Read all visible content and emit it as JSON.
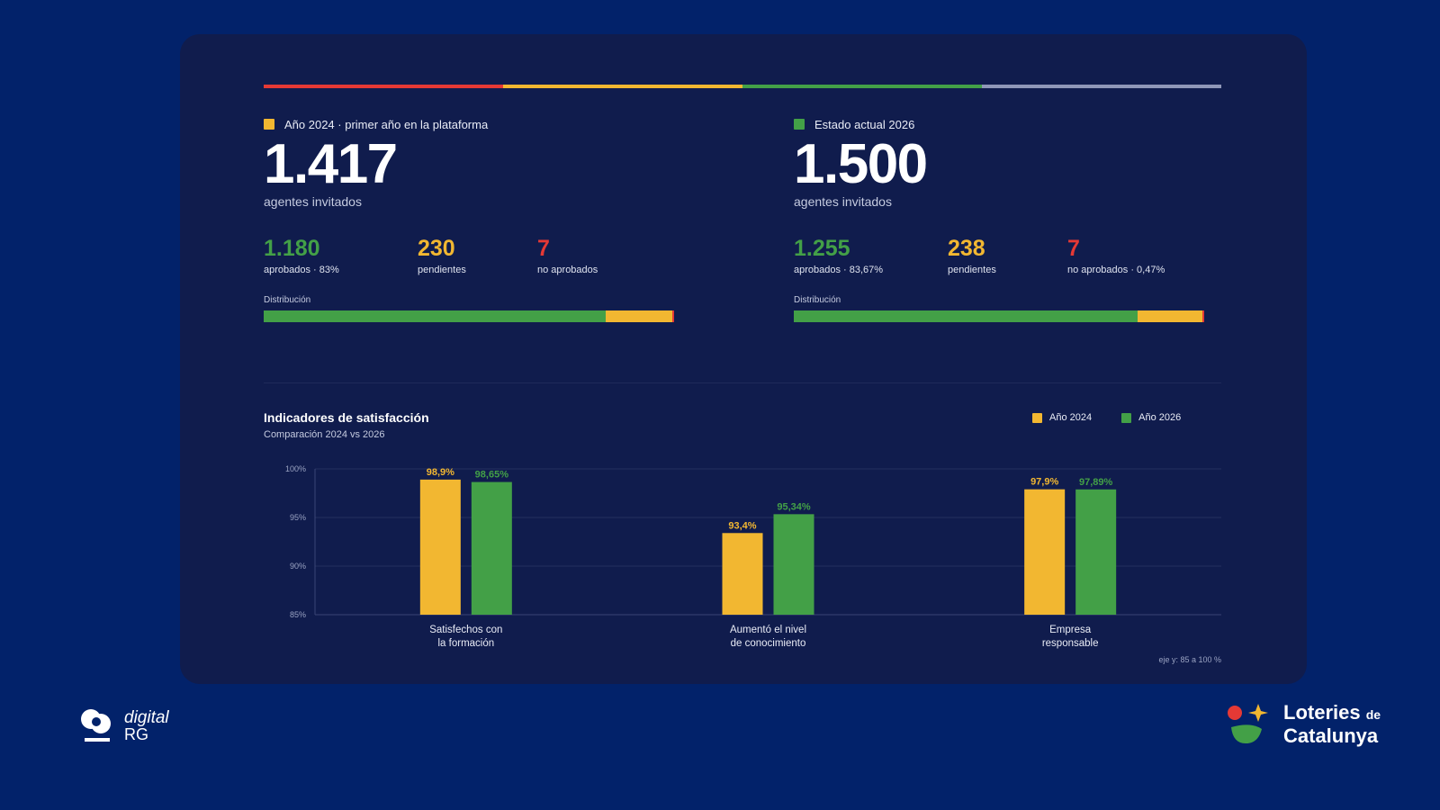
{
  "colors": {
    "background": "#02226a",
    "card": "#101c4d",
    "green": "#43a047",
    "yellow": "#f2b731",
    "red": "#e53935",
    "grey": "#8f97b8"
  },
  "panels": [
    {
      "label": "Año 2024 · primer año en la plataforma",
      "label_color": "#f2b731",
      "total": "1.417",
      "total_caption": "agentes invitados",
      "stats": [
        {
          "value": "1.180",
          "label": "aprobados · 83%",
          "color": "#43a047"
        },
        {
          "value": "230",
          "label": "pendientes",
          "color": "#f2b731"
        },
        {
          "value": "7",
          "label": "no aprobados",
          "color": "#e53935"
        }
      ],
      "distribution_label": "Distribución",
      "distribution": [
        {
          "name": "aprobados",
          "fraction": 0.8328,
          "color": "#43a047"
        },
        {
          "name": "pendientes",
          "fraction": 0.1623,
          "color": "#f2b731"
        },
        {
          "name": "no aprobados",
          "fraction": 0.0049,
          "color": "#e53935"
        }
      ]
    },
    {
      "label": "Estado actual 2026",
      "label_color": "#43a047",
      "total": "1.500",
      "total_caption": "agentes invitados",
      "stats": [
        {
          "value": "1.255",
          "label": "aprobados · 83,67%",
          "color": "#43a047"
        },
        {
          "value": "238",
          "label": "pendientes",
          "color": "#f2b731"
        },
        {
          "value": "7",
          "label": "no aprobados · 0,47%",
          "color": "#e53935"
        }
      ],
      "distribution_label": "Distribución",
      "distribution": [
        {
          "name": "aprobados",
          "fraction": 0.8367,
          "color": "#43a047"
        },
        {
          "name": "pendientes",
          "fraction": 0.1587,
          "color": "#f2b731"
        },
        {
          "name": "no aprobados",
          "fraction": 0.0047,
          "color": "#e53935"
        }
      ]
    }
  ],
  "chart_data": {
    "type": "bar",
    "title": "Indicadores de satisfacción",
    "subtitle": "Comparación 2024 vs 2026",
    "categories": [
      "Satisfechos con la formación",
      "Aumentó el nivel de conocimiento",
      "Empresa responsable"
    ],
    "category_lines": [
      [
        "Satisfechos con",
        "la formación"
      ],
      [
        "Aumentó el nivel",
        "de conocimiento"
      ],
      [
        "Empresa",
        "responsable"
      ]
    ],
    "series": [
      {
        "name": "Año 2024",
        "color": "#f2b731",
        "values": [
          98.9,
          93.4,
          97.9
        ],
        "labels": [
          "98,9%",
          "93,4%",
          "97,9%"
        ]
      },
      {
        "name": "Año 2026",
        "color": "#43a047",
        "values": [
          98.65,
          95.34,
          97.89
        ],
        "labels": [
          "98,65%",
          "95,34%",
          "97,89%"
        ]
      }
    ],
    "ylim": [
      85,
      100
    ],
    "yticks": [
      100,
      95,
      90,
      85
    ],
    "ytick_labels": [
      "100%",
      "95%",
      "90%",
      "85%"
    ],
    "grid": true,
    "legend_position": "top-right",
    "axis_note": "eje y: 85 a 100 %"
  },
  "branding": {
    "left_line1": "digital",
    "left_line2": "RG",
    "right_line1": "Loteries",
    "right_line1_small": "de",
    "right_line2": "Catalunya"
  }
}
